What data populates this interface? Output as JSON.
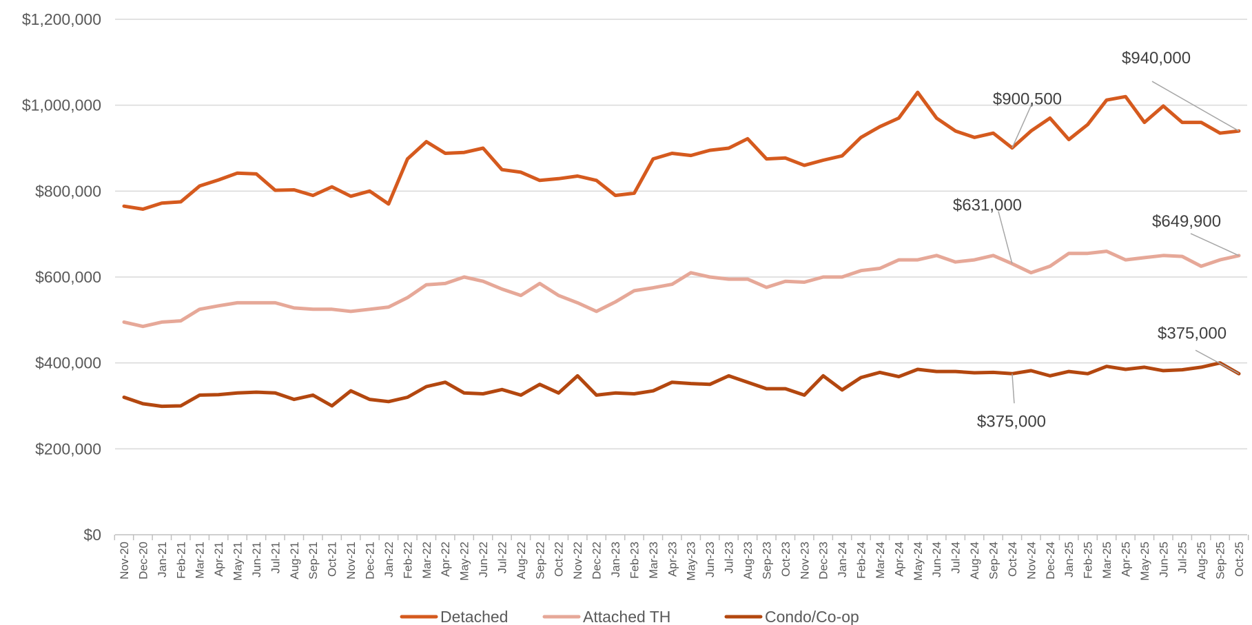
{
  "chart_data": {
    "type": "line",
    "title": "",
    "xlabel": "",
    "ylabel": "",
    "ylim": [
      0,
      1200000
    ],
    "yticks": [
      0,
      200000,
      400000,
      600000,
      800000,
      1000000,
      1200000
    ],
    "ytick_labels": [
      "$0",
      "$200,000",
      "$400,000",
      "$600,000",
      "$800,000",
      "$1,000,000",
      "$1,200,000"
    ],
    "grid": true,
    "legend_position": "bottom",
    "categories": [
      "Nov-20",
      "Dec-20",
      "Jan-21",
      "Feb-21",
      "Mar-21",
      "Apr-21",
      "May-21",
      "Jun-21",
      "Jul-21",
      "Aug-21",
      "Sep-21",
      "Oct-21",
      "Nov-21",
      "Dec-21",
      "Jan-22",
      "Feb-22",
      "Mar-22",
      "Apr-22",
      "May-22",
      "Jun-22",
      "Jul-22",
      "Aug-22",
      "Sep-22",
      "Oct-22",
      "Nov-22",
      "Dec-22",
      "Jan-23",
      "Feb-23",
      "Mar-23",
      "Apr-23",
      "May-23",
      "Jun-23",
      "Jul-23",
      "Aug-23",
      "Sep-23",
      "Oct-23",
      "Nov-23",
      "Dec-23",
      "Jan-24",
      "Feb-24",
      "Mar-24",
      "Apr-24",
      "May-24",
      "Jun-24",
      "Jul-24",
      "Aug-24",
      "Sep-24",
      "Oct-24",
      "Nov-24",
      "Dec-24",
      "Jan-25",
      "Feb-25",
      "Mar-25",
      "Apr-25",
      "May-25",
      "Jun-25",
      "Jul-25",
      "Aug-25",
      "Sep-25",
      "Oct-25"
    ],
    "series": [
      {
        "name": "Detached",
        "color": "#d55a1e",
        "values": [
          765000,
          758000,
          772000,
          775000,
          812000,
          826000,
          842000,
          840000,
          802000,
          803000,
          790000,
          810000,
          788000,
          800000,
          770000,
          875000,
          915000,
          888000,
          890000,
          900000,
          850000,
          844000,
          825000,
          829000,
          835000,
          825000,
          790000,
          795000,
          875000,
          888000,
          883000,
          895000,
          900000,
          922000,
          875000,
          877000,
          860000,
          872000,
          882000,
          925000,
          950000,
          970000,
          1030000,
          970000,
          940000,
          925000,
          935000,
          900500,
          940000,
          970000,
          920000,
          955000,
          1012000,
          1020000,
          960000,
          998000,
          960000,
          960000,
          935000,
          940000
        ]
      },
      {
        "name": "Attached TH",
        "color": "#e6a898",
        "values": [
          495000,
          485000,
          495000,
          498000,
          525000,
          533000,
          540000,
          540000,
          540000,
          528000,
          525000,
          525000,
          520000,
          525000,
          530000,
          552000,
          582000,
          585000,
          600000,
          590000,
          572000,
          557000,
          585000,
          557000,
          540000,
          520000,
          542000,
          568000,
          575000,
          583000,
          610000,
          600000,
          595000,
          595000,
          576000,
          590000,
          588000,
          600000,
          600000,
          615000,
          620000,
          640000,
          640000,
          650000,
          635000,
          640000,
          650000,
          631000,
          610000,
          625000,
          655000,
          655000,
          660000,
          640000,
          645000,
          650000,
          648000,
          625000,
          640000,
          649900
        ]
      },
      {
        "name": "Condo/Co-op",
        "color": "#b3470f",
        "values": [
          320000,
          305000,
          299000,
          300000,
          325000,
          326000,
          330000,
          332000,
          330000,
          315000,
          325000,
          300000,
          335000,
          315000,
          310000,
          320000,
          345000,
          355000,
          330000,
          328000,
          338000,
          325000,
          350000,
          330000,
          370000,
          325000,
          330000,
          328000,
          335000,
          355000,
          352000,
          350000,
          370000,
          355000,
          340000,
          340000,
          325000,
          370000,
          337000,
          366000,
          378000,
          368000,
          385000,
          380000,
          380000,
          377000,
          378000,
          375000,
          382000,
          370000,
          380000,
          375000,
          392000,
          385000,
          390000,
          382000,
          384000,
          390000,
          400000,
          375000
        ]
      }
    ],
    "annotations": [
      {
        "text": "$940,000",
        "series": 0,
        "index": 59
      },
      {
        "text": "$900,500",
        "series": 0,
        "index": 47
      },
      {
        "text": "$649,900",
        "series": 1,
        "index": 59
      },
      {
        "text": "$631,000",
        "series": 1,
        "index": 47
      },
      {
        "text": "$375,000",
        "series": 2,
        "index": 59
      },
      {
        "text": "$375,000",
        "series": 2,
        "index": 47
      }
    ]
  }
}
